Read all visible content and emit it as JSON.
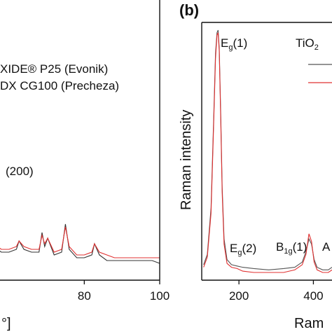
{
  "chart_data": [
    {
      "panel": "a",
      "type": "line",
      "title": "",
      "xlabel": "°]",
      "ylabel": "",
      "xlim": [
        40,
        100
      ],
      "ylim": [
        0,
        1
      ],
      "xticks": [
        80,
        100
      ],
      "grid": false,
      "legend_lines": [
        "XIDE® P25 (Evonik)",
        "DX CG100 (Precheza)"
      ],
      "annotations": [
        {
          "label": "(200)",
          "x": 48,
          "y": 0.58
        }
      ],
      "series": [
        {
          "color": "#333333",
          "x": [
            40,
            42,
            44,
            46,
            47.5,
            48,
            48.5,
            50,
            53,
            54,
            55,
            56,
            58,
            60,
            62,
            62.7,
            64,
            66,
            68,
            68.8,
            69.5,
            70.3,
            72,
            74,
            75,
            76,
            78,
            80,
            82,
            82.7,
            84,
            86,
            88,
            90,
            92,
            94,
            96,
            98,
            100
          ],
          "y": [
            0.1,
            0.1,
            0.1,
            0.11,
            0.14,
            0.16,
            0.13,
            0.11,
            0.11,
            0.15,
            0.17,
            0.12,
            0.1,
            0.1,
            0.11,
            0.14,
            0.11,
            0.1,
            0.1,
            0.17,
            0.12,
            0.15,
            0.09,
            0.1,
            0.2,
            0.11,
            0.08,
            0.08,
            0.09,
            0.13,
            0.09,
            0.07,
            0.07,
            0.07,
            0.07,
            0.07,
            0.07,
            0.07,
            0.06
          ]
        },
        {
          "color": "#e03030",
          "x": [
            40,
            42,
            44,
            46,
            47.5,
            48,
            48.5,
            50,
            53,
            54,
            55,
            56,
            58,
            60,
            62,
            62.7,
            64,
            66,
            68,
            68.8,
            69.5,
            70.3,
            72,
            74,
            75,
            76,
            78,
            80,
            82,
            82.7,
            84,
            86,
            88,
            90,
            92,
            94,
            96,
            98,
            100
          ],
          "y": [
            0.11,
            0.11,
            0.11,
            0.12,
            0.15,
            0.17,
            0.14,
            0.12,
            0.12,
            0.15,
            0.17,
            0.13,
            0.11,
            0.11,
            0.12,
            0.14,
            0.12,
            0.11,
            0.11,
            0.16,
            0.13,
            0.15,
            0.1,
            0.11,
            0.19,
            0.12,
            0.09,
            0.09,
            0.1,
            0.13,
            0.1,
            0.09,
            0.08,
            0.08,
            0.08,
            0.08,
            0.08,
            0.08,
            0.08
          ]
        }
      ]
    },
    {
      "panel": "b",
      "type": "line",
      "panel_label": "(b)",
      "title": "",
      "xlabel": "Ram",
      "ylabel": "Raman intensity",
      "xlim": [
        100,
        450
      ],
      "ylim": [
        0,
        1
      ],
      "xticks": [
        200,
        400
      ],
      "grid": false,
      "legend_lines": [
        "TiO2"
      ],
      "annotations": [
        {
          "label": "Eg(1)",
          "x": 144,
          "y": 0.92
        },
        {
          "label": "Eg(2)",
          "x": 197,
          "y": 0.16
        },
        {
          "label": "B1g(1)",
          "x": 397,
          "y": 0.27
        },
        {
          "label": "A",
          "x": 440,
          "y": 0.27
        }
      ],
      "series": [
        {
          "color": "#555555",
          "x": [
            105,
            115,
            125,
            132,
            137,
            141,
            144,
            147,
            151,
            155,
            160,
            168,
            180,
            195,
            210,
            240,
            280,
            320,
            350,
            370,
            380,
            388,
            395,
            402,
            410,
            425,
            440,
            450
          ],
          "y": [
            0.06,
            0.1,
            0.28,
            0.62,
            0.88,
            0.96,
            0.97,
            0.9,
            0.65,
            0.36,
            0.16,
            0.08,
            0.06,
            0.055,
            0.05,
            0.045,
            0.04,
            0.045,
            0.05,
            0.07,
            0.11,
            0.16,
            0.14,
            0.08,
            0.05,
            0.04,
            0.04,
            0.05
          ]
        },
        {
          "color": "#e03030",
          "x": [
            105,
            115,
            125,
            132,
            137,
            141,
            144,
            147,
            151,
            155,
            160,
            168,
            180,
            195,
            210,
            240,
            280,
            320,
            350,
            370,
            380,
            388,
            395,
            402,
            410,
            425,
            440,
            450
          ],
          "y": [
            0.05,
            0.09,
            0.26,
            0.6,
            0.86,
            0.95,
            0.96,
            0.89,
            0.63,
            0.34,
            0.14,
            0.065,
            0.05,
            0.045,
            0.035,
            0.03,
            0.03,
            0.03,
            0.04,
            0.06,
            0.1,
            0.18,
            0.15,
            0.07,
            0.04,
            0.03,
            0.03,
            0.04
          ]
        }
      ]
    }
  ]
}
